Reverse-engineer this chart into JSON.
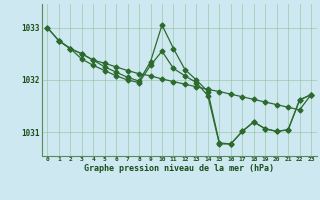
{
  "background_color": "#cde8f0",
  "plot_bg_color": "#cde8f0",
  "line_color": "#2d6a2d",
  "grid_color": "#8fbc8f",
  "text_color": "#1a4d1a",
  "xlabel": "Graphe pression niveau de la mer (hPa)",
  "ylim": [
    1030.55,
    1033.45
  ],
  "xlim": [
    -0.5,
    23.5
  ],
  "yticks": [
    1031,
    1032,
    1033
  ],
  "xticks": [
    0,
    1,
    2,
    3,
    4,
    5,
    6,
    7,
    8,
    9,
    10,
    11,
    12,
    13,
    14,
    15,
    16,
    17,
    18,
    19,
    20,
    21,
    22,
    23
  ],
  "series1": {
    "x": [
      0,
      1,
      2,
      3,
      4,
      5,
      6,
      7,
      8,
      9,
      10,
      11,
      12,
      13,
      14,
      15,
      16,
      17,
      18,
      19,
      20,
      21,
      22,
      23
    ],
    "y": [
      1033.0,
      1032.75,
      1032.6,
      1032.5,
      1032.38,
      1032.32,
      1032.25,
      1032.18,
      1032.12,
      1032.08,
      1032.02,
      1031.97,
      1031.92,
      1031.87,
      1031.82,
      1031.78,
      1031.73,
      1031.68,
      1031.63,
      1031.58,
      1031.53,
      1031.48,
      1031.43,
      1031.72
    ]
  },
  "series2": {
    "x": [
      0,
      1,
      2,
      3,
      4,
      5,
      6,
      7,
      8,
      9,
      10,
      11,
      12,
      13,
      14,
      15,
      16,
      17,
      18,
      19,
      20,
      21,
      22,
      23
    ],
    "y": [
      1033.0,
      1032.75,
      1032.6,
      1032.5,
      1032.38,
      1032.25,
      1032.15,
      1032.05,
      1031.98,
      1032.35,
      1033.05,
      1032.6,
      1032.2,
      1032.0,
      1031.78,
      1030.8,
      1030.78,
      1031.02,
      1031.2,
      1031.07,
      1031.02,
      1031.05,
      1031.62,
      1031.72
    ]
  },
  "series3": {
    "x": [
      1,
      2,
      3,
      4,
      5,
      6,
      7,
      8,
      9,
      10,
      11,
      12,
      13,
      14,
      15,
      16,
      17,
      18,
      19,
      20,
      21,
      22,
      23
    ],
    "y": [
      1032.75,
      1032.6,
      1032.4,
      1032.28,
      1032.18,
      1032.08,
      1032.0,
      1031.95,
      1032.28,
      1032.55,
      1032.22,
      1032.08,
      1031.95,
      1031.7,
      1030.78,
      1030.78,
      1031.02,
      1031.2,
      1031.07,
      1031.02,
      1031.05,
      1031.62,
      1031.72
    ]
  }
}
